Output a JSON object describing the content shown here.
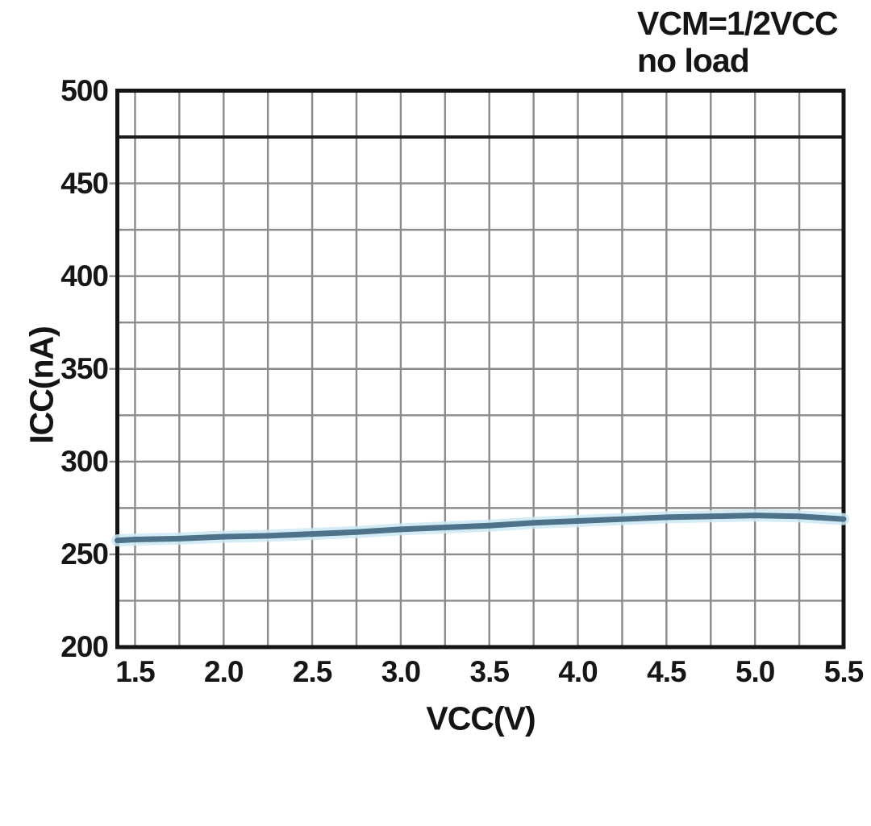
{
  "chart_data": {
    "type": "line",
    "title": "",
    "annotation": [
      "VCM=1/2VCC",
      "no load"
    ],
    "xlabel": "VCC(V)",
    "ylabel": "ICC(nA)",
    "xlim": [
      1.4,
      5.5
    ],
    "ylim": [
      200,
      500
    ],
    "x_ticks": [
      1.5,
      2.0,
      2.5,
      3.0,
      3.5,
      4.0,
      4.5,
      5.0,
      5.5
    ],
    "x_tick_labels": [
      "1.5",
      "2.0",
      "2.5",
      "3.0",
      "3.5",
      "4.0",
      "4.5",
      "5.0",
      "5.5"
    ],
    "x_minor_step": 0.25,
    "y_ticks": [
      200,
      250,
      300,
      350,
      400,
      450,
      500
    ],
    "y_tick_labels": [
      "200",
      "250",
      "300",
      "350",
      "400",
      "450",
      "500"
    ],
    "y_minor_step": 25,
    "grid": true,
    "legend": "none",
    "emphasized_gridline_y": 475,
    "grid_color": "#8b8b8b",
    "frame_color": "#141414",
    "text_color": "#141414",
    "series": [
      {
        "x": [
          1.4,
          1.5,
          1.75,
          2.0,
          2.25,
          2.5,
          2.75,
          3.0,
          3.25,
          3.5,
          3.75,
          4.0,
          4.25,
          4.5,
          4.75,
          5.0,
          5.25,
          5.5
        ],
        "y": [
          257.5,
          258,
          258.5,
          259.5,
          260,
          261,
          262,
          263.5,
          264.5,
          265.5,
          267,
          268,
          269,
          270,
          270.5,
          271,
          270.5,
          269
        ],
        "color": "#4e7289",
        "glow_color": "#cde9f5"
      }
    ]
  }
}
